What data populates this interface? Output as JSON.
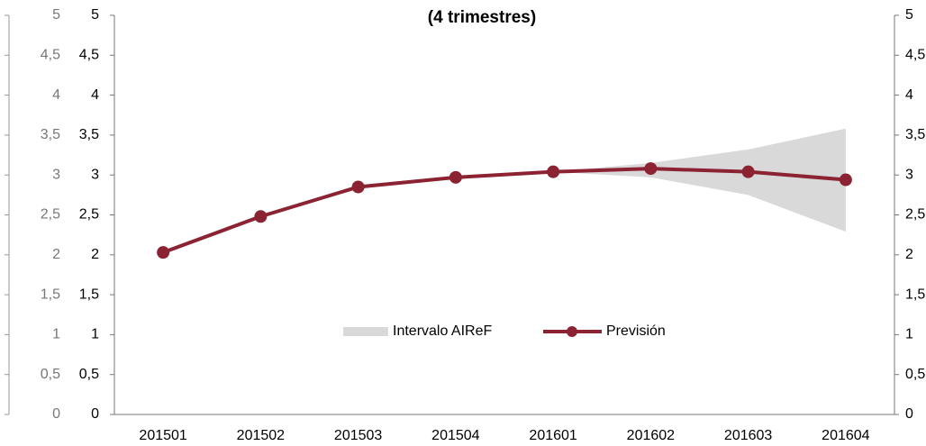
{
  "chart_data": {
    "type": "line",
    "title": "(4 trimestres)",
    "categories": [
      "201501",
      "201502",
      "201503",
      "201504",
      "201601",
      "201602",
      "201603",
      "201604"
    ],
    "series": [
      {
        "name": "Intervalo AIReF",
        "color": "#d9d9d9",
        "lower": [
          null,
          null,
          null,
          null,
          3.04,
          2.97,
          2.75,
          2.29
        ],
        "upper": [
          null,
          null,
          null,
          null,
          3.04,
          3.15,
          3.32,
          3.58
        ]
      },
      {
        "name": "Previsión",
        "color": "#8b2332",
        "values": [
          2.03,
          2.48,
          2.85,
          2.97,
          3.04,
          3.08,
          3.04,
          2.94
        ]
      }
    ],
    "ylim": [
      0,
      5
    ],
    "yticks": [
      0,
      {
        "value": 0.5,
        "label": "0,5"
      },
      1,
      {
        "value": 1.5,
        "label": "1,5"
      },
      2,
      {
        "value": 2.5,
        "label": "2,5"
      },
      3,
      {
        "value": 3.5,
        "label": "3,5"
      },
      4,
      {
        "value": 4.5,
        "label": "4,5"
      },
      5
    ],
    "legend": "center"
  }
}
